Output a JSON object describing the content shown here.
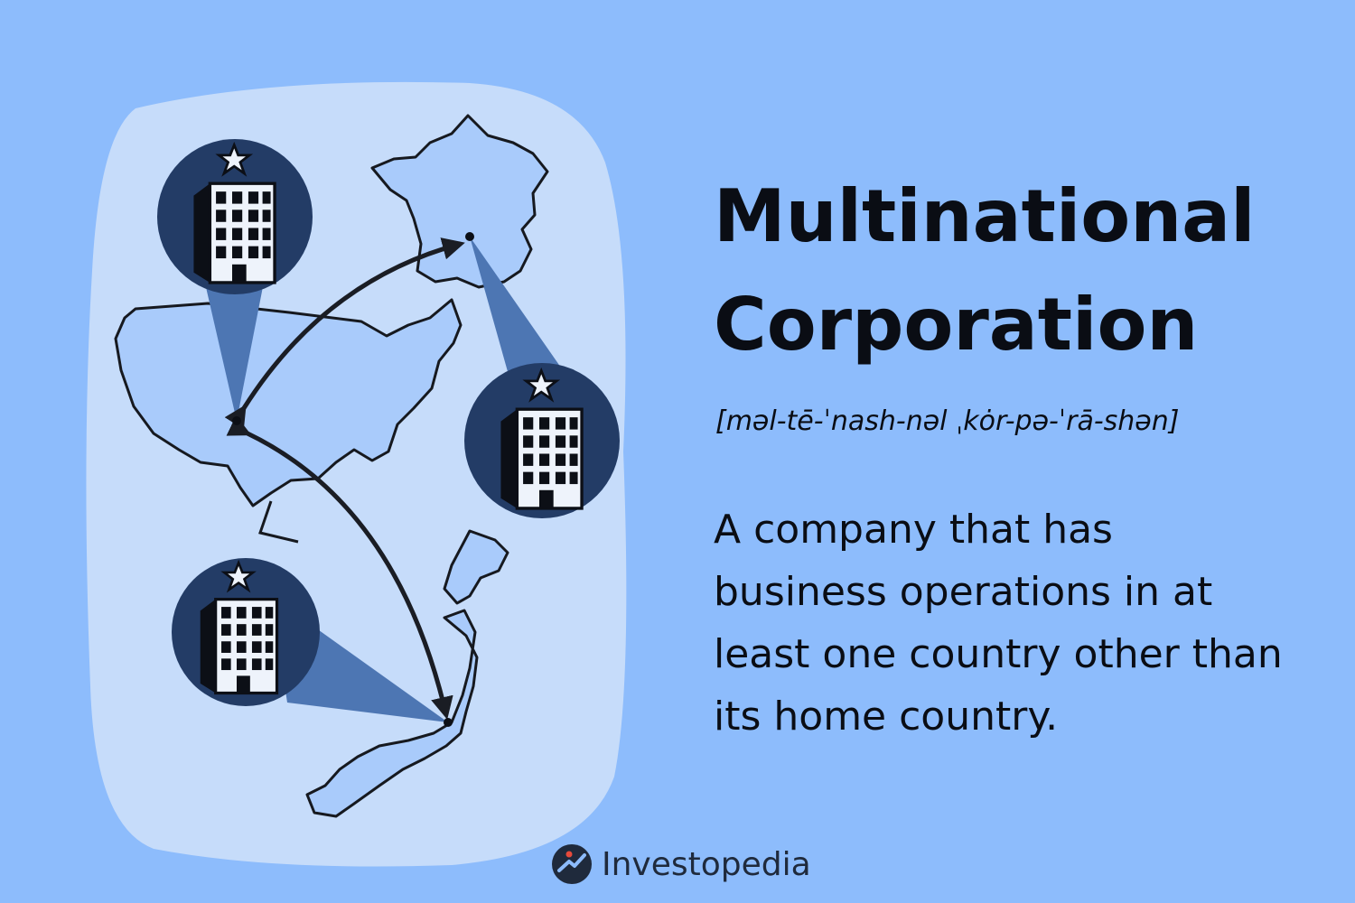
{
  "title": {
    "line1": "Multinational",
    "line2": "Corporation"
  },
  "pronunciation": "[məl-tē-ˈnash-nəl ˌkȯr-pə-ˈrā-shən]",
  "definition": "A company that has business operations in at least one country other than its home country.",
  "brand": {
    "name": "Investopedia",
    "logo_icon": "investopedia-logo-icon"
  },
  "illustration": {
    "icons": [
      "us-map-icon",
      "france-map-icon",
      "japan-map-icon",
      "office-building-icon",
      "star-icon",
      "double-arrow-icon"
    ]
  },
  "colors": {
    "background": "#8dbcfc",
    "map_panel": "#c6dcfa",
    "land": "#a9cbfb",
    "badge": "#233c66",
    "beam": "#4d76b3",
    "text": "#0a0d14"
  }
}
